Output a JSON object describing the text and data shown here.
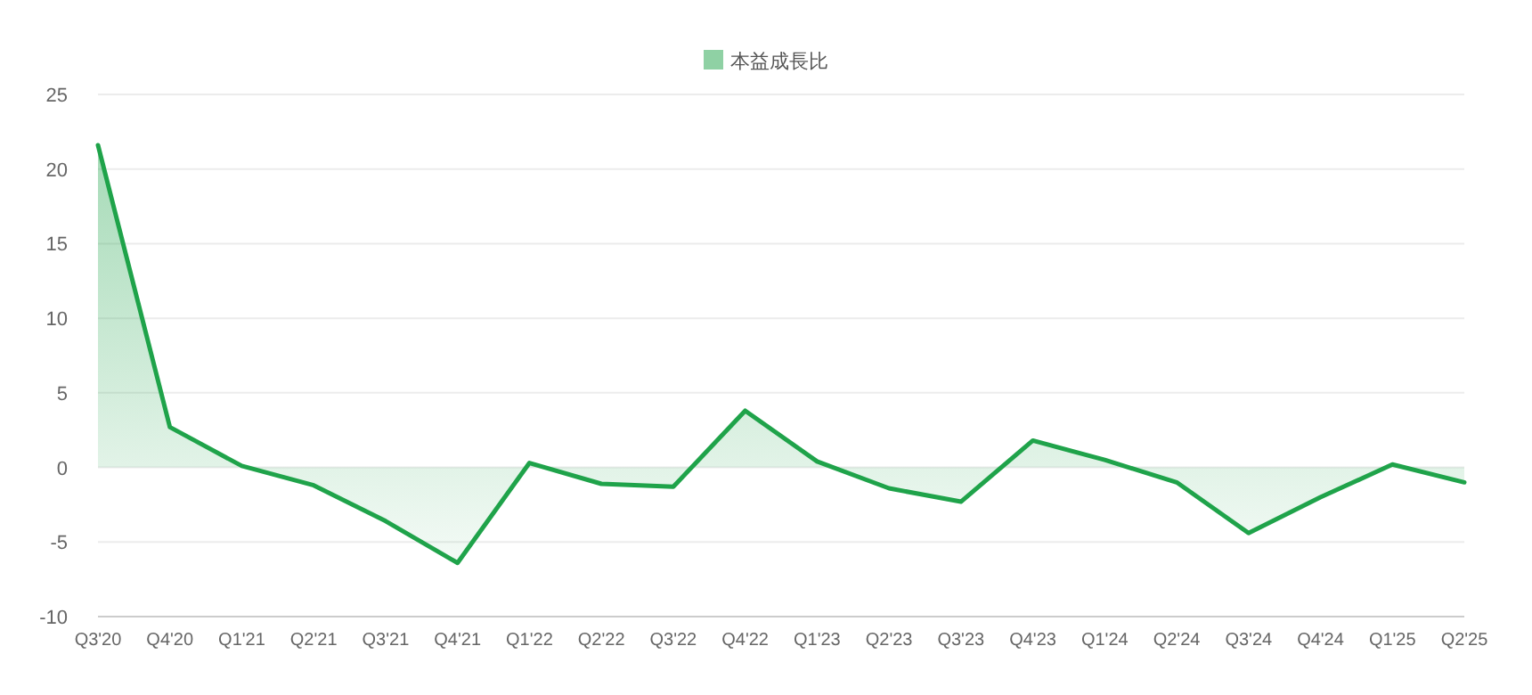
{
  "chart_data": {
    "type": "area",
    "categories": [
      "Q3'20",
      "Q4'20",
      "Q1'21",
      "Q2'21",
      "Q3'21",
      "Q4'21",
      "Q1'22",
      "Q2'22",
      "Q3'22",
      "Q4'22",
      "Q1'23",
      "Q2'23",
      "Q3'23",
      "Q4'23",
      "Q1'24",
      "Q2'24",
      "Q3'24",
      "Q4'24",
      "Q1'25",
      "Q2'25"
    ],
    "series": [
      {
        "name": "本益成長比",
        "color": "#1fa34a",
        "values": [
          21.6,
          2.7,
          0.1,
          -1.2,
          -3.6,
          -6.4,
          0.3,
          -1.1,
          -1.3,
          3.8,
          0.4,
          -1.4,
          -2.3,
          1.8,
          0.5,
          -1.0,
          -4.4,
          -2.0,
          0.2,
          -1.0
        ]
      }
    ],
    "ylim": [
      -10,
      25
    ],
    "yticks": [
      -10,
      -5,
      0,
      5,
      10,
      15,
      20,
      25
    ],
    "grid": "y",
    "legend": "top"
  }
}
